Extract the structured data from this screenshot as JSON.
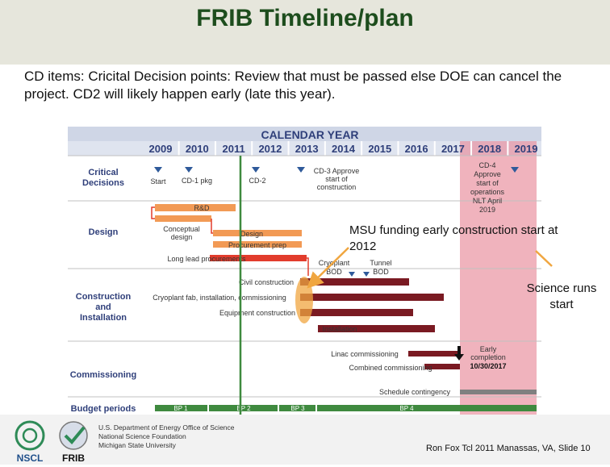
{
  "title": "FRIB Timeline/plan",
  "intro": "CD items: Cricital Decision points: Review that must be passed else DOE can cancel the project.  CD2 will likely happen early (late this year).",
  "chart": {
    "heading": "CALENDAR YEAR",
    "years": [
      "2009",
      "2010",
      "2011",
      "2012",
      "2013",
      "2014",
      "2015",
      "2016",
      "2017",
      "2018",
      "2019"
    ],
    "rows": [
      "Critical Decisions",
      "Design",
      "Construction and Installation",
      "Commissioning",
      "Budget periods"
    ],
    "cd": {
      "start": "Start",
      "cd1": "CD-1 pkg",
      "cd2": "CD-2",
      "cd3": "CD-3 Approve start of construction",
      "cd4": "CD-4 Approve start of operations NLT April 2019"
    },
    "bars": {
      "rd": "R&D",
      "conceptual": "Conceptual design",
      "design": "Design",
      "procurement": "Procurement prep",
      "longlead": "Long lead procurements",
      "cryoplant_bod": "Cryoplant BOD",
      "tunnel_bod": "Tunnel BOD",
      "civil": "Civil construction",
      "cryofab": "Cryoplant fab, installation, commissioning",
      "equipment": "Equipment construction",
      "installation": "Installation",
      "linac": "Linac commissioning",
      "combined": "Combined commissioning",
      "early": "Early completion 10/30/2017",
      "contingency": "Schedule contingency"
    },
    "budget": [
      "BP 1",
      "BP 2",
      "BP 3",
      "BP 4"
    ]
  },
  "notes": {
    "msu": "MSU funding early construction start at 2012",
    "science": "Science runs start"
  },
  "footer": {
    "institutions": [
      "U.S. Department of Energy Office of Science",
      "National Science Foundation",
      "Michigan State University"
    ],
    "logos": [
      "NSCL",
      "FRIB"
    ],
    "slide": "Ron Fox Tcl 2011 Manassas, VA, Slide 10"
  },
  "colors": {
    "title": "#1d4d1d",
    "year_bar": "#2f3f7a",
    "orange": "#f29a55",
    "dark_red": "#7a1a22",
    "gray": "#808080",
    "green": "#3f8a3f",
    "highlight": "#e88a9a",
    "arrow": "#f0a640"
  }
}
